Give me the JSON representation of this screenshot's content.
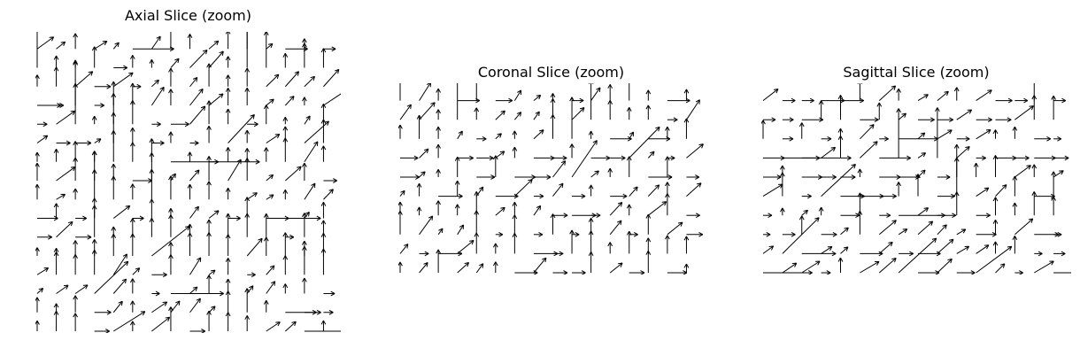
{
  "chart_data": [
    {
      "type": "quiver",
      "title": "Axial Slice (zoom)",
      "grid": false,
      "axes_visible": false,
      "arrow_color": "#000000",
      "cols": 16,
      "rows": 16
    },
    {
      "type": "quiver",
      "title": "Coronal Slice (zoom)",
      "grid": false,
      "axes_visible": false,
      "arrow_color": "#000000",
      "cols": 16,
      "rows": 10
    },
    {
      "type": "quiver",
      "title": "Sagittal Slice (zoom)",
      "grid": false,
      "axes_visible": false,
      "arrow_color": "#000000",
      "cols": 16,
      "rows": 10
    }
  ]
}
